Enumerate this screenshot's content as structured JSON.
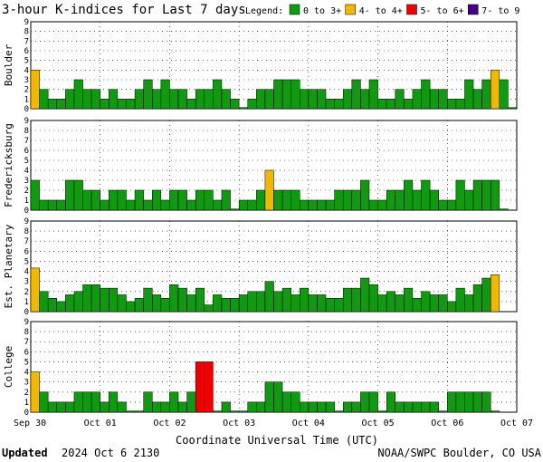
{
  "colors": {
    "quiet": "#119911",
    "active": "#f0b800",
    "storm": "#ee0000",
    "severe": "#440088",
    "bar_outline": "#000000"
  },
  "chart_data": [
    {
      "type": "bar",
      "title": "3-hour K-indices for Last 7 days",
      "ylabel": "Boulder",
      "ylim": [
        0,
        9
      ],
      "values": [
        4,
        2,
        1,
        1,
        2,
        3,
        2,
        2,
        1,
        2,
        1,
        1,
        2,
        3,
        2,
        3,
        2,
        2,
        1,
        2,
        2,
        3,
        2,
        1,
        0,
        1,
        2,
        2,
        3,
        3,
        3,
        2,
        2,
        2,
        1,
        1,
        2,
        3,
        2,
        3,
        1,
        1,
        2,
        1,
        2,
        3,
        2,
        2,
        1,
        1,
        3,
        2,
        3,
        4,
        3,
        0
      ]
    },
    {
      "type": "bar",
      "ylabel": "Fredericksburg",
      "ylim": [
        0,
        9
      ],
      "values": [
        3,
        1,
        1,
        1,
        3,
        3,
        2,
        2,
        1,
        2,
        2,
        1,
        2,
        1,
        2,
        1,
        2,
        2,
        1,
        2,
        2,
        1,
        2,
        0,
        1,
        1,
        2,
        4,
        2,
        2,
        2,
        1,
        1,
        1,
        1,
        2,
        2,
        2,
        3,
        1,
        1,
        2,
        2,
        3,
        2,
        3,
        2,
        1,
        1,
        3,
        2,
        3,
        3,
        3,
        0
      ]
    },
    {
      "type": "bar",
      "ylabel": "Est. Planetary",
      "ylim": [
        0,
        9
      ],
      "values": [
        4.33,
        2,
        1.33,
        1,
        1.67,
        2,
        2.67,
        2.67,
        2.33,
        2.33,
        1.67,
        1,
        1.33,
        2.33,
        1.67,
        1.33,
        2.67,
        2.33,
        1.67,
        2.33,
        0.67,
        1.67,
        1.33,
        1.33,
        1.67,
        2,
        2,
        3,
        2,
        2.33,
        1.67,
        2.33,
        1.67,
        1.67,
        1.33,
        1.33,
        2.33,
        2.33,
        3.33,
        2.67,
        1.67,
        2,
        1.67,
        2.33,
        1.33,
        2,
        1.67,
        1.67,
        1,
        2.33,
        1.67,
        2.67,
        3.33,
        3.67
      ]
    },
    {
      "type": "bar",
      "ylabel": "College",
      "ylim": [
        0,
        9
      ],
      "values": [
        4,
        2,
        1,
        1,
        1,
        2,
        2,
        2,
        1,
        2,
        1,
        0,
        0,
        2,
        1,
        1,
        2,
        1,
        2,
        5,
        5,
        0,
        1,
        0,
        0,
        1,
        1,
        3,
        3,
        2,
        2,
        1,
        1,
        1,
        1,
        0,
        1,
        1,
        2,
        2,
        0,
        2,
        1,
        1,
        1,
        1,
        1,
        0,
        2,
        2,
        2,
        2,
        2,
        0
      ]
    }
  ],
  "legend": {
    "title": "Legend:",
    "entries": [
      {
        "label": "0 to 3+",
        "color": "#119911"
      },
      {
        "label": "4- to 4+",
        "color": "#f0b800"
      },
      {
        "label": "5- to 6+",
        "color": "#ee0000"
      },
      {
        "label": "7- to 9",
        "color": "#440088"
      }
    ]
  },
  "y_ticks": [
    "0",
    "1",
    "2",
    "3",
    "4",
    "5",
    "6",
    "7",
    "8",
    "9"
  ],
  "x_ticks": [
    "Sep 30",
    "Oct 01",
    "Oct 02",
    "Oct 03",
    "Oct 04",
    "Oct 05",
    "Oct 06",
    "Oct 07"
  ],
  "x_label": "Coordinate Universal Time (UTC)",
  "footer": {
    "updated_label": "Updated",
    "updated_value": "2024 Oct  6 2130",
    "credit": "NOAA/SWPC Boulder, CO USA"
  }
}
